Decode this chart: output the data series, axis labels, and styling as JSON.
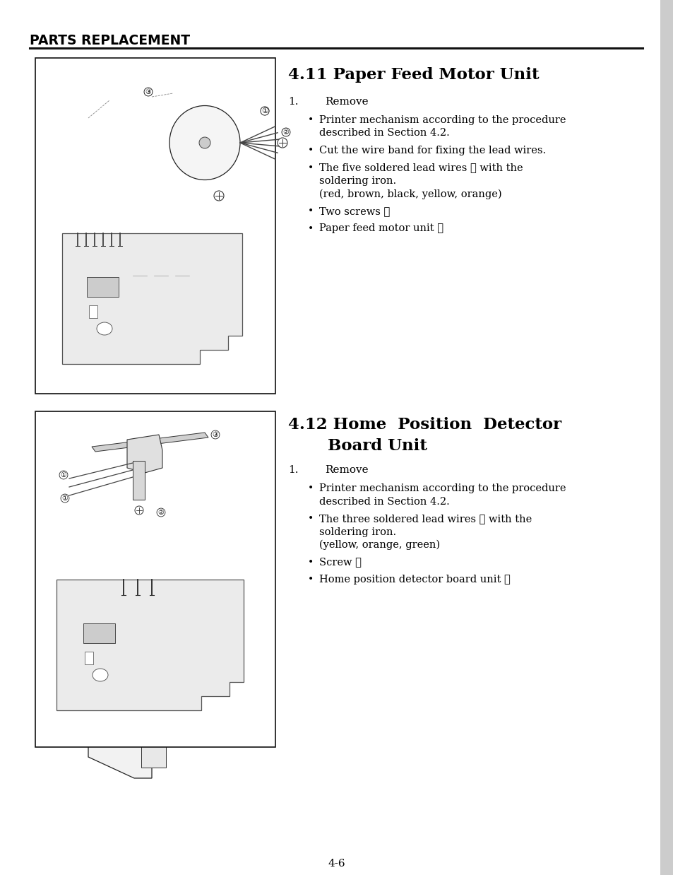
{
  "bg_color": "#ffffff",
  "shadow_color": "#cccccc",
  "header_title": "PARTS REPLACEMENT",
  "section1_title": "4.11 Paper Feed Motor Unit",
  "section1_step": "1.",
  "section1_step_label": "Remove",
  "section1_bullets": [
    [
      "Printer mechanism according to the procedure",
      "described in Section 4.2."
    ],
    [
      "Cut the wire band for fixing the lead wires."
    ],
    [
      "The five soldered lead wires ① with the",
      "soldering iron.",
      "(red, brown, black, yellow, orange)"
    ],
    [
      "Two screws ②"
    ],
    [
      "Paper feed motor unit ③"
    ]
  ],
  "section2_title_line1": "4.12 Home  Position  Detector",
  "section2_title_line2": "       Board Unit",
  "section2_step": "1.",
  "section2_step_label": "Remove",
  "section2_bullets": [
    [
      "Printer mechanism according to the procedure",
      "described in Section 4.2."
    ],
    [
      "The three soldered lead wires ① with the",
      "soldering iron.",
      "(yellow, orange, green)"
    ],
    [
      "Screw ②"
    ],
    [
      "Home position detector board unit ③"
    ]
  ],
  "page_number": "4-6",
  "text_color": "#000000",
  "line_color": "#111111"
}
